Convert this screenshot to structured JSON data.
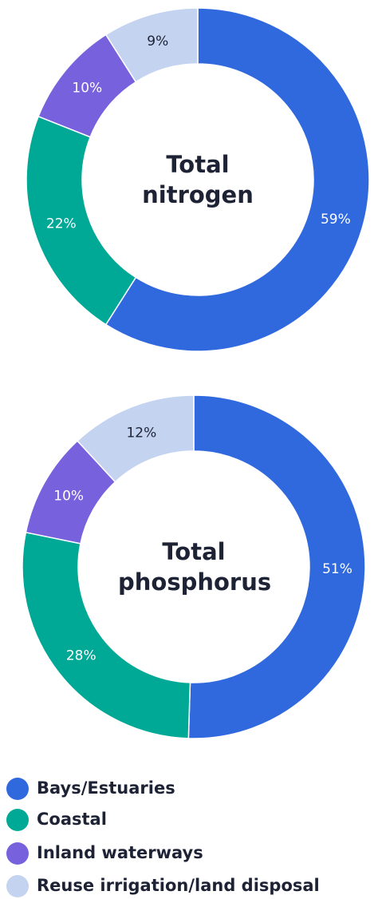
{
  "chart_data": [
    {
      "type": "pie",
      "title": "Total nitrogen",
      "categories": [
        "Bays/Estuaries",
        "Coastal",
        "Inland waterways",
        "Reuse irrigation/land disposal"
      ],
      "values": [
        59,
        22,
        10,
        9
      ],
      "value_labels": [
        "59%",
        "22%",
        "10%",
        "9%"
      ],
      "colors": [
        "#3069de",
        "#00a896",
        "#7761dc",
        "#c3d3f0"
      ]
    },
    {
      "type": "pie",
      "title": "Total phosphorus",
      "categories": [
        "Bays/Estuaries",
        "Coastal",
        "Inland waterways",
        "Reuse irrigation/land disposal"
      ],
      "values": [
        51,
        28,
        10,
        12
      ],
      "value_labels": [
        "51%",
        "28%",
        "10%",
        "12%"
      ],
      "colors": [
        "#3069de",
        "#00a896",
        "#7761dc",
        "#c3d3f0"
      ]
    }
  ]
}
